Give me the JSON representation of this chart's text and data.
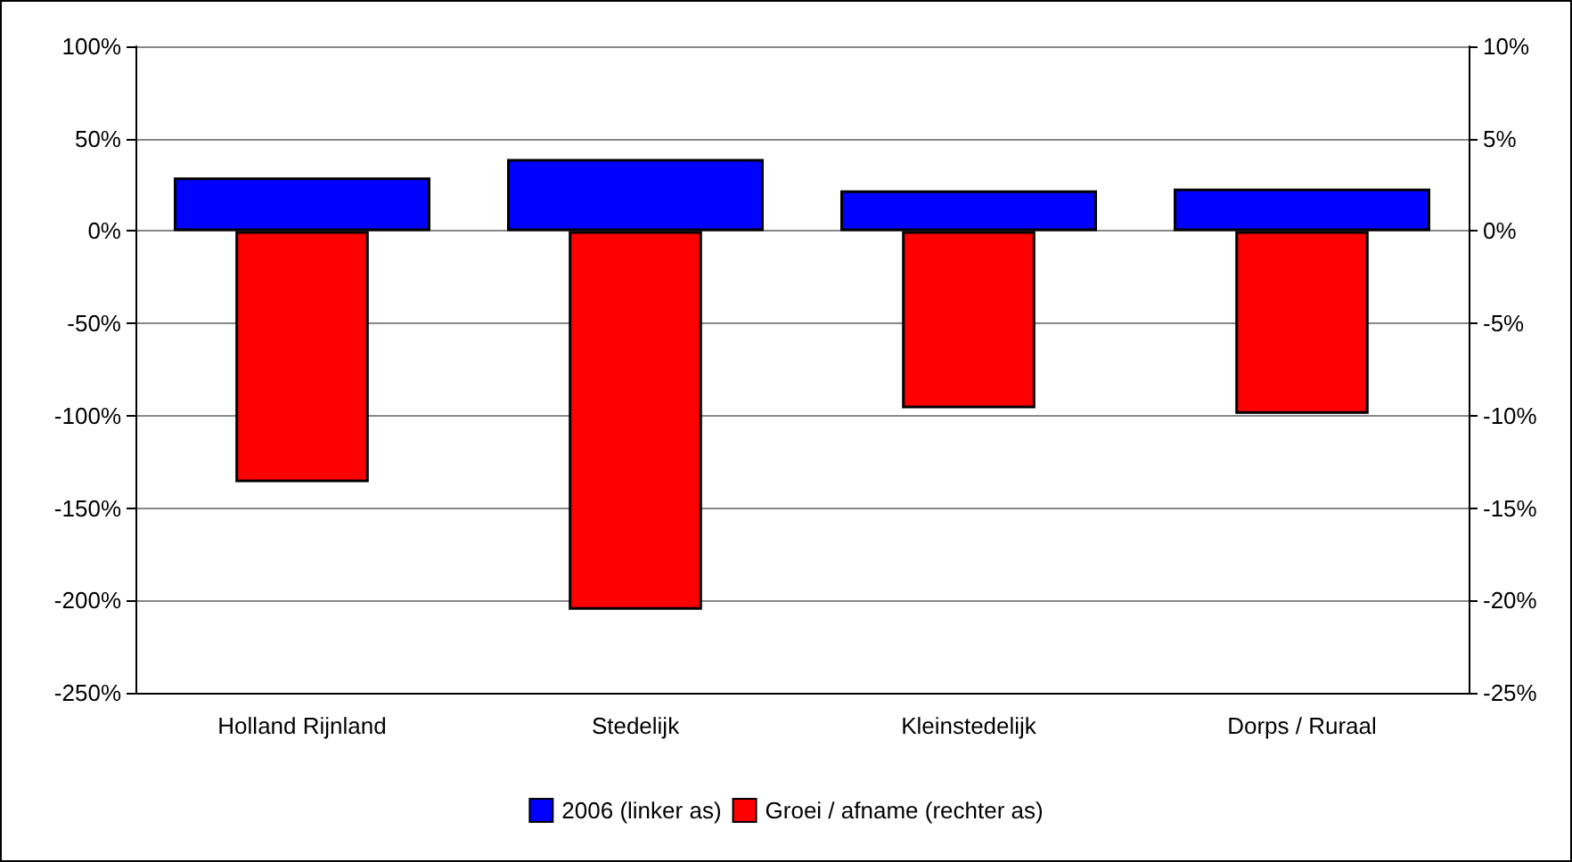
{
  "chart_data": {
    "type": "bar",
    "categories": [
      "Holland Rijnland",
      "Stedelijk",
      "Kleinstedelijk",
      "Dorps / Ruraal"
    ],
    "series": [
      {
        "name": "2006 (linker as)",
        "color": "#0000ff",
        "values": [
          29,
          39,
          22,
          23
        ]
      },
      {
        "name": "Groei / afname (rechter as)",
        "color": "#ff0000",
        "axis": "y2",
        "values": [
          -13.6,
          -20.5,
          -9.6,
          -9.9
        ]
      }
    ],
    "ylim": [
      -250,
      100
    ],
    "yticks": [
      {
        "value": -250,
        "label": "-250%"
      },
      {
        "value": -200,
        "label": "-200%"
      },
      {
        "value": -150,
        "label": "-150%"
      },
      {
        "value": -100,
        "label": "-100%"
      },
      {
        "value": -50,
        "label": "-50%"
      },
      {
        "value": 0,
        "label": "0%"
      },
      {
        "value": 50,
        "label": "50%"
      },
      {
        "value": 100,
        "label": "100%"
      }
    ],
    "y2lim": [
      -25,
      10
    ],
    "y2ticks": [
      {
        "value": -25,
        "label": "-25%"
      },
      {
        "value": -20,
        "label": "-20%"
      },
      {
        "value": -15,
        "label": "-15%"
      },
      {
        "value": -10,
        "label": "-10%"
      },
      {
        "value": -5,
        "label": "-5%"
      },
      {
        "value": 0,
        "label": "0%"
      },
      {
        "value": 5,
        "label": "5%"
      },
      {
        "value": 10,
        "label": "10%"
      }
    ],
    "grid": "y",
    "legend": "bottom"
  }
}
